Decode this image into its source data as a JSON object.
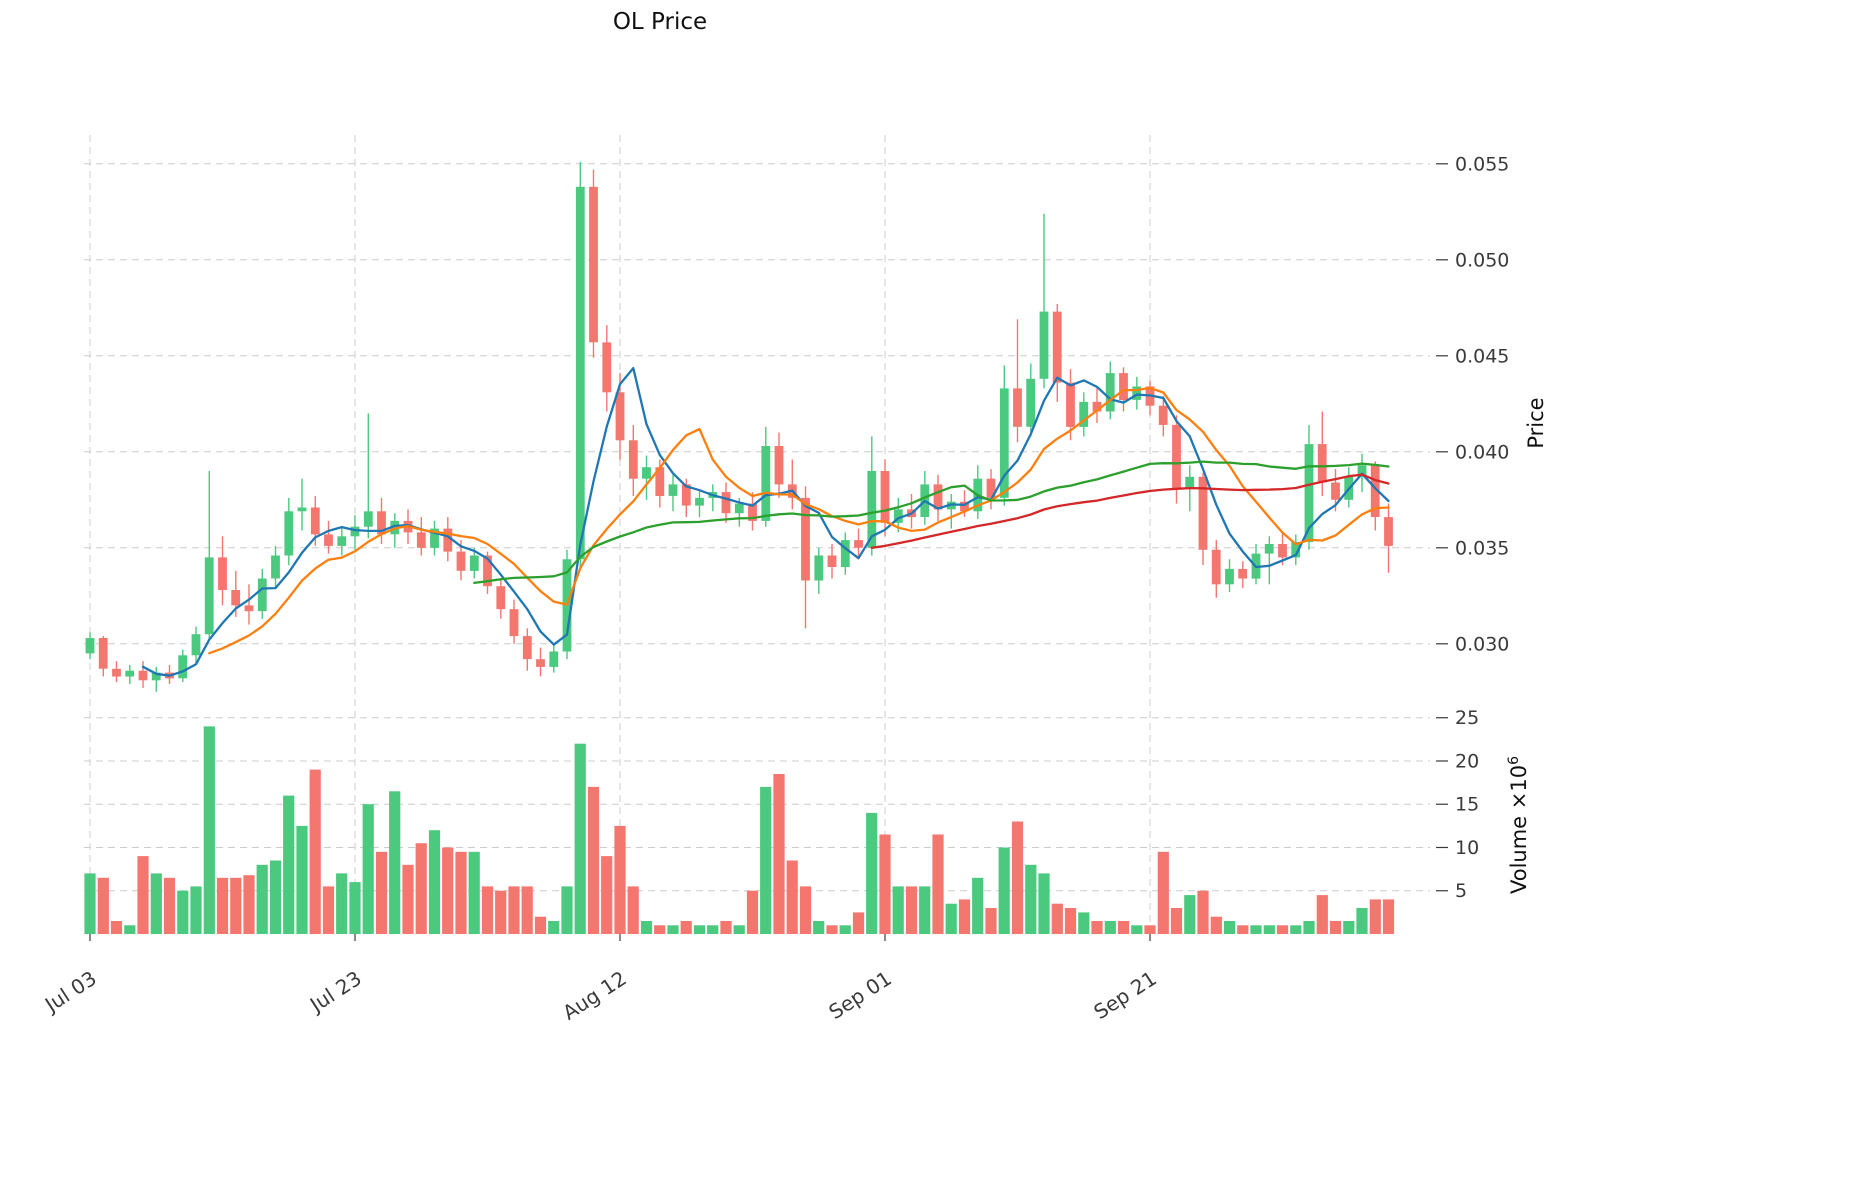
{
  "title": "OL Price",
  "chart_data": {
    "type": "candlestick",
    "title": "OL Price",
    "legend": "none",
    "grid": "dashed",
    "x_ticks": [
      {
        "index": 0,
        "label": "Jul 03"
      },
      {
        "index": 20,
        "label": "Jul 23"
      },
      {
        "index": 40,
        "label": "Aug 12"
      },
      {
        "index": 60,
        "label": "Sep 01"
      },
      {
        "index": 80,
        "label": "Sep 21"
      }
    ],
    "price_axis": {
      "label": "Price",
      "ticks": [
        0.03,
        0.035,
        0.04,
        0.045,
        0.05,
        0.055
      ],
      "min": 0.0265,
      "max": 0.0565
    },
    "volume_axis": {
      "label_base": "Volume ×10",
      "label_exp": "6",
      "ticks": [
        5,
        10,
        15,
        20,
        25
      ],
      "max": 25.2
    },
    "series": {
      "open": [
        0.0295,
        0.0303,
        0.0287,
        0.0283,
        0.0286,
        0.0281,
        0.0285,
        0.0282,
        0.0294,
        0.0305,
        0.0345,
        0.0328,
        0.032,
        0.0317,
        0.0334,
        0.0346,
        0.0369,
        0.0371,
        0.0357,
        0.0351,
        0.0356,
        0.0361,
        0.0369,
        0.0357,
        0.0364,
        0.0358,
        0.035,
        0.036,
        0.0348,
        0.0338,
        0.0346,
        0.033,
        0.0318,
        0.0304,
        0.0292,
        0.0288,
        0.0296,
        0.0344,
        0.0538,
        0.0457,
        0.0431,
        0.0406,
        0.0386,
        0.0392,
        0.0377,
        0.0383,
        0.0372,
        0.0376,
        0.0379,
        0.0368,
        0.0373,
        0.0364,
        0.0403,
        0.0383,
        0.0376,
        0.0333,
        0.0346,
        0.034,
        0.0354,
        0.035,
        0.039,
        0.0363,
        0.037,
        0.0366,
        0.0383,
        0.037,
        0.0374,
        0.0369,
        0.0386,
        0.0376,
        0.0433,
        0.0413,
        0.0438,
        0.0473,
        0.0436,
        0.0413,
        0.0426,
        0.0421,
        0.0441,
        0.0427,
        0.0434,
        0.0424,
        0.0414,
        0.0381,
        0.0387,
        0.0349,
        0.0331,
        0.0339,
        0.0334,
        0.0347,
        0.0352,
        0.0345,
        0.0353,
        0.0404,
        0.0384,
        0.0375,
        0.0387,
        0.0393,
        0.0366
      ],
      "high": [
        0.0306,
        0.0304,
        0.0291,
        0.0289,
        0.0291,
        0.0288,
        0.0289,
        0.0297,
        0.0309,
        0.039,
        0.0356,
        0.0338,
        0.0331,
        0.0339,
        0.0351,
        0.0376,
        0.0386,
        0.0377,
        0.0364,
        0.0361,
        0.0367,
        0.042,
        0.0376,
        0.0368,
        0.037,
        0.0366,
        0.0364,
        0.0366,
        0.0354,
        0.035,
        0.0348,
        0.0334,
        0.0323,
        0.0308,
        0.0298,
        0.03,
        0.0349,
        0.0551,
        0.0547,
        0.0466,
        0.0441,
        0.0414,
        0.0398,
        0.0396,
        0.0388,
        0.0386,
        0.038,
        0.0383,
        0.0384,
        0.0376,
        0.0379,
        0.0413,
        0.041,
        0.0396,
        0.0382,
        0.035,
        0.0352,
        0.0358,
        0.036,
        0.0408,
        0.0396,
        0.0376,
        0.0378,
        0.039,
        0.0388,
        0.0378,
        0.038,
        0.0393,
        0.0391,
        0.0445,
        0.0469,
        0.0446,
        0.0524,
        0.0477,
        0.0443,
        0.0431,
        0.0433,
        0.0447,
        0.0444,
        0.0439,
        0.0437,
        0.0429,
        0.0419,
        0.0393,
        0.0389,
        0.0354,
        0.0344,
        0.0343,
        0.0352,
        0.0356,
        0.0358,
        0.0357,
        0.0414,
        0.0421,
        0.0391,
        0.0392,
        0.0399,
        0.0395,
        0.0373
      ],
      "low": [
        0.0292,
        0.0283,
        0.028,
        0.0279,
        0.0277,
        0.0275,
        0.0279,
        0.028,
        0.029,
        0.0302,
        0.032,
        0.0314,
        0.031,
        0.0313,
        0.0329,
        0.0341,
        0.0359,
        0.0351,
        0.0347,
        0.0346,
        0.0349,
        0.0355,
        0.0352,
        0.035,
        0.0352,
        0.0346,
        0.0346,
        0.0343,
        0.0333,
        0.0334,
        0.0326,
        0.0313,
        0.03,
        0.0286,
        0.0283,
        0.0285,
        0.0292,
        0.0339,
        0.0449,
        0.0421,
        0.0396,
        0.0377,
        0.0375,
        0.0371,
        0.0369,
        0.0366,
        0.0366,
        0.0369,
        0.0363,
        0.0361,
        0.0359,
        0.0361,
        0.0376,
        0.037,
        0.0308,
        0.0326,
        0.0334,
        0.0336,
        0.0344,
        0.0346,
        0.0356,
        0.0358,
        0.036,
        0.0362,
        0.0364,
        0.036,
        0.0366,
        0.0365,
        0.037,
        0.0372,
        0.0405,
        0.0408,
        0.0433,
        0.0426,
        0.0406,
        0.0408,
        0.0415,
        0.0417,
        0.0421,
        0.0422,
        0.0419,
        0.0408,
        0.0373,
        0.0369,
        0.0341,
        0.0324,
        0.0327,
        0.0329,
        0.0331,
        0.0331,
        0.0341,
        0.0341,
        0.0349,
        0.0377,
        0.0369,
        0.0371,
        0.0379,
        0.0359,
        0.0337
      ],
      "close": [
        0.0303,
        0.0287,
        0.0283,
        0.0286,
        0.0281,
        0.0285,
        0.0282,
        0.0294,
        0.0305,
        0.0345,
        0.0328,
        0.032,
        0.0317,
        0.0334,
        0.0346,
        0.0369,
        0.0371,
        0.0357,
        0.0351,
        0.0356,
        0.0361,
        0.0369,
        0.0357,
        0.0364,
        0.0358,
        0.035,
        0.036,
        0.0348,
        0.0338,
        0.0346,
        0.033,
        0.0318,
        0.0304,
        0.0292,
        0.0288,
        0.0296,
        0.0344,
        0.0538,
        0.0457,
        0.0431,
        0.0406,
        0.0386,
        0.0392,
        0.0377,
        0.0383,
        0.0372,
        0.0376,
        0.0379,
        0.0368,
        0.0373,
        0.0364,
        0.0403,
        0.0383,
        0.0376,
        0.0333,
        0.0346,
        0.034,
        0.0354,
        0.035,
        0.039,
        0.0363,
        0.037,
        0.0366,
        0.0383,
        0.037,
        0.0374,
        0.0369,
        0.0386,
        0.0376,
        0.0433,
        0.0413,
        0.0438,
        0.0473,
        0.0436,
        0.0413,
        0.0426,
        0.0421,
        0.0441,
        0.0427,
        0.0434,
        0.0424,
        0.0414,
        0.0381,
        0.0387,
        0.0349,
        0.0331,
        0.0339,
        0.0334,
        0.0347,
        0.0352,
        0.0345,
        0.0353,
        0.0404,
        0.0384,
        0.0375,
        0.0387,
        0.0393,
        0.0366,
        0.0351
      ],
      "volume": [
        7,
        6.5,
        1.5,
        1,
        9,
        7,
        6.5,
        5,
        5.5,
        24,
        6.5,
        6.5,
        6.8,
        8,
        8.5,
        16,
        12.5,
        19,
        5.5,
        7,
        6,
        15,
        9.5,
        16.5,
        8,
        10.5,
        12,
        10,
        9.5,
        9.5,
        5.5,
        5,
        5.5,
        5.5,
        2,
        1.5,
        5.5,
        22,
        17,
        9,
        12.5,
        5.5,
        1.5,
        1,
        1,
        1.5,
        1,
        1,
        1.5,
        1,
        5,
        17,
        18.5,
        8.5,
        5.5,
        1.5,
        1,
        1,
        2.5,
        14,
        11.5,
        5.5,
        5.5,
        5.5,
        11.5,
        3.5,
        4,
        6.5,
        3,
        10,
        13,
        8,
        7,
        3.5,
        3,
        2.5,
        1.5,
        1.5,
        1.5,
        1,
        1,
        9.5,
        3,
        4.5,
        5,
        2,
        1.5,
        1,
        1,
        1,
        1,
        1,
        1.5,
        4.5,
        1.5,
        1.5,
        3,
        4,
        4
      ]
    },
    "moving_averages": [
      {
        "window": 5,
        "color": "#1f77b4"
      },
      {
        "window": 10,
        "color": "#ff7f0e"
      },
      {
        "window": 30,
        "color": "#2ca02c"
      },
      {
        "window": 60,
        "color": "#d62728"
      }
    ],
    "colors": {
      "up": "#4ac97f",
      "down": "#f3766f",
      "grid": "#cccccc",
      "text": "#3a3a3a"
    }
  }
}
